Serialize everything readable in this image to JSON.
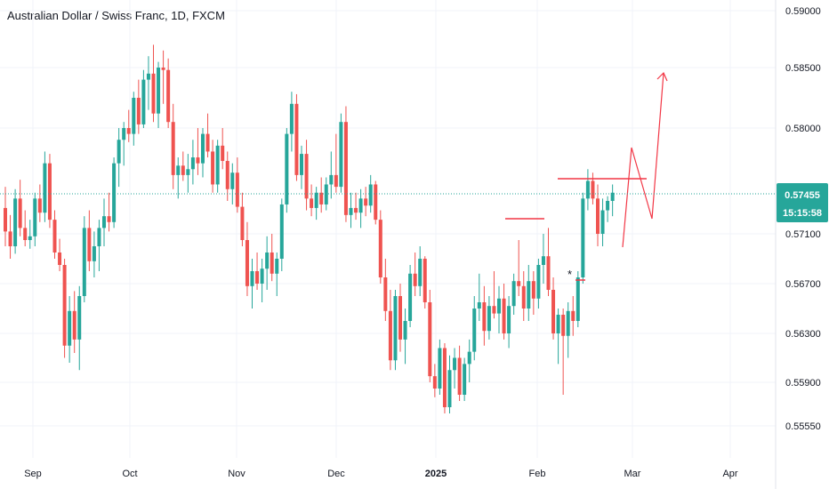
{
  "title": "Australian Dollar / Swiss Franc, 1D, FXCM",
  "chart_data": {
    "type": "candlestick",
    "y_ticks": [
      "0.59000",
      "0.58500",
      "0.58000",
      "0.57100",
      "0.56700",
      "0.56300",
      "0.55900",
      "0.55550"
    ],
    "x_ticks": [
      {
        "label": "Sep",
        "bold": false
      },
      {
        "label": "Oct",
        "bold": false
      },
      {
        "label": "Nov",
        "bold": false
      },
      {
        "label": "Dec",
        "bold": false
      },
      {
        "label": "2025",
        "bold": true
      },
      {
        "label": "Feb",
        "bold": false
      },
      {
        "label": "Mar",
        "bold": false
      },
      {
        "label": "Apr",
        "bold": false
      }
    ],
    "last_price": "0.57455",
    "countdown": "15:15:58",
    "colors": {
      "up": "#26a69a",
      "down": "#ef5350",
      "last_price": "#26a69a",
      "annotation": "#f23645"
    },
    "candles": [
      [
        0.5732,
        0.575,
        0.57,
        0.5712
      ],
      [
        0.5712,
        0.5726,
        0.569,
        0.57
      ],
      [
        0.57,
        0.5748,
        0.5694,
        0.574
      ],
      [
        0.574,
        0.5756,
        0.5708,
        0.5715
      ],
      [
        0.5715,
        0.573,
        0.57,
        0.5705
      ],
      [
        0.5705,
        0.5722,
        0.5698,
        0.5708
      ],
      [
        0.5708,
        0.5745,
        0.57,
        0.574
      ],
      [
        0.574,
        0.5752,
        0.572,
        0.5728
      ],
      [
        0.5728,
        0.578,
        0.572,
        0.577
      ],
      [
        0.577,
        0.5778,
        0.5715,
        0.5722
      ],
      [
        0.5722,
        0.573,
        0.569,
        0.5695
      ],
      [
        0.5695,
        0.5706,
        0.568,
        0.5685
      ],
      [
        0.5685,
        0.569,
        0.561,
        0.562
      ],
      [
        0.562,
        0.566,
        0.5606,
        0.5648
      ],
      [
        0.5648,
        0.5664,
        0.5614,
        0.5625
      ],
      [
        0.5625,
        0.5668,
        0.56,
        0.566
      ],
      [
        0.566,
        0.5725,
        0.5655,
        0.5715
      ],
      [
        0.5715,
        0.573,
        0.568,
        0.5688
      ],
      [
        0.5688,
        0.5712,
        0.5675,
        0.57
      ],
      [
        0.57,
        0.5722,
        0.568,
        0.5715
      ],
      [
        0.5715,
        0.574,
        0.57,
        0.5725
      ],
      [
        0.5725,
        0.5745,
        0.5712,
        0.572
      ],
      [
        0.572,
        0.5775,
        0.5715,
        0.577
      ],
      [
        0.577,
        0.58,
        0.575,
        0.579
      ],
      [
        0.579,
        0.5805,
        0.5768,
        0.58
      ],
      [
        0.58,
        0.5815,
        0.5788,
        0.5795
      ],
      [
        0.5795,
        0.583,
        0.5785,
        0.5825
      ],
      [
        0.5825,
        0.584,
        0.5795,
        0.5803
      ],
      [
        0.5803,
        0.5848,
        0.58,
        0.584
      ],
      [
        0.584,
        0.586,
        0.5815,
        0.5845
      ],
      [
        0.5845,
        0.587,
        0.5805,
        0.5812
      ],
      [
        0.5812,
        0.5855,
        0.58,
        0.585
      ],
      [
        0.585,
        0.5865,
        0.582,
        0.5848
      ],
      [
        0.5848,
        0.5858,
        0.58,
        0.5805
      ],
      [
        0.5805,
        0.582,
        0.5748,
        0.576
      ],
      [
        0.576,
        0.5775,
        0.574,
        0.5768
      ],
      [
        0.5768,
        0.578,
        0.5755,
        0.576
      ],
      [
        0.576,
        0.5778,
        0.5745,
        0.5765
      ],
      [
        0.5765,
        0.579,
        0.5752,
        0.5775
      ],
      [
        0.5775,
        0.58,
        0.576,
        0.577
      ],
      [
        0.577,
        0.58,
        0.5758,
        0.5795
      ],
      [
        0.5795,
        0.5812,
        0.5775,
        0.578
      ],
      [
        0.578,
        0.579,
        0.5745,
        0.5752
      ],
      [
        0.5752,
        0.579,
        0.5745,
        0.5785
      ],
      [
        0.5785,
        0.58,
        0.5765,
        0.5772
      ],
      [
        0.5772,
        0.578,
        0.5738,
        0.5748
      ],
      [
        0.5748,
        0.577,
        0.5735,
        0.5762
      ],
      [
        0.5762,
        0.5775,
        0.5728,
        0.5733
      ],
      [
        0.5733,
        0.5745,
        0.57,
        0.5705
      ],
      [
        0.5705,
        0.572,
        0.566,
        0.5668
      ],
      [
        0.5668,
        0.569,
        0.565,
        0.568
      ],
      [
        0.568,
        0.5695,
        0.5665,
        0.567
      ],
      [
        0.567,
        0.569,
        0.5655,
        0.5682
      ],
      [
        0.5682,
        0.5708,
        0.5665,
        0.5695
      ],
      [
        0.5695,
        0.571,
        0.5672,
        0.5678
      ],
      [
        0.5678,
        0.5695,
        0.566,
        0.569
      ],
      [
        0.569,
        0.574,
        0.568,
        0.5735
      ],
      [
        0.5735,
        0.58,
        0.5728,
        0.5795
      ],
      [
        0.5795,
        0.583,
        0.578,
        0.582
      ],
      [
        0.582,
        0.5828,
        0.5755,
        0.576
      ],
      [
        0.576,
        0.5785,
        0.5748,
        0.5778
      ],
      [
        0.5778,
        0.579,
        0.573,
        0.574
      ],
      [
        0.574,
        0.5752,
        0.5725,
        0.5732
      ],
      [
        0.5732,
        0.575,
        0.5722,
        0.5745
      ],
      [
        0.5745,
        0.5758,
        0.5728,
        0.5735
      ],
      [
        0.5735,
        0.5758,
        0.573,
        0.5752
      ],
      [
        0.5752,
        0.578,
        0.574,
        0.576
      ],
      [
        0.576,
        0.5795,
        0.5745,
        0.575
      ],
      [
        0.575,
        0.5812,
        0.5745,
        0.5805
      ],
      [
        0.5805,
        0.5818,
        0.572,
        0.5726
      ],
      [
        0.5726,
        0.5745,
        0.5715,
        0.5732
      ],
      [
        0.5732,
        0.5745,
        0.5722,
        0.5728
      ],
      [
        0.5728,
        0.5748,
        0.5715,
        0.574
      ],
      [
        0.574,
        0.575,
        0.5725,
        0.5734
      ],
      [
        0.5734,
        0.576,
        0.5728,
        0.5752
      ],
      [
        0.5752,
        0.5755,
        0.5718,
        0.5722
      ],
      [
        0.5722,
        0.573,
        0.567,
        0.5675
      ],
      [
        0.5675,
        0.569,
        0.564,
        0.5648
      ],
      [
        0.5648,
        0.5665,
        0.56,
        0.5608
      ],
      [
        0.5608,
        0.5665,
        0.56,
        0.566
      ],
      [
        0.566,
        0.567,
        0.5615,
        0.5625
      ],
      [
        0.5625,
        0.565,
        0.5605,
        0.564
      ],
      [
        0.564,
        0.5685,
        0.5635,
        0.5678
      ],
      [
        0.5678,
        0.5695,
        0.566,
        0.5668
      ],
      [
        0.5668,
        0.57,
        0.566,
        0.569
      ],
      [
        0.569,
        0.5692,
        0.565,
        0.5655
      ],
      [
        0.5655,
        0.5665,
        0.559,
        0.5595
      ],
      [
        0.5595,
        0.5605,
        0.5578,
        0.5585
      ],
      [
        0.5585,
        0.5625,
        0.558,
        0.5618
      ],
      [
        0.5618,
        0.5622,
        0.5565,
        0.557
      ],
      [
        0.557,
        0.5612,
        0.5565,
        0.56
      ],
      [
        0.56,
        0.5618,
        0.5585,
        0.561
      ],
      [
        0.561,
        0.562,
        0.5575,
        0.558
      ],
      [
        0.558,
        0.561,
        0.5575,
        0.5605
      ],
      [
        0.5605,
        0.5625,
        0.559,
        0.5615
      ],
      [
        0.5615,
        0.566,
        0.5608,
        0.565
      ],
      [
        0.565,
        0.5678,
        0.564,
        0.5655
      ],
      [
        0.5655,
        0.5668,
        0.562,
        0.5632
      ],
      [
        0.5632,
        0.566,
        0.5625,
        0.5652
      ],
      [
        0.5652,
        0.568,
        0.5642,
        0.5646
      ],
      [
        0.5646,
        0.5668,
        0.563,
        0.5658
      ],
      [
        0.5658,
        0.567,
        0.5625,
        0.563
      ],
      [
        0.563,
        0.566,
        0.5618,
        0.5652
      ],
      [
        0.5652,
        0.5678,
        0.5645,
        0.5672
      ],
      [
        0.5672,
        0.5705,
        0.566,
        0.5668
      ],
      [
        0.5668,
        0.568,
        0.564,
        0.565
      ],
      [
        0.565,
        0.5685,
        0.564,
        0.5672
      ],
      [
        0.5672,
        0.568,
        0.5645,
        0.5658
      ],
      [
        0.5658,
        0.569,
        0.565,
        0.5685
      ],
      [
        0.5685,
        0.571,
        0.567,
        0.5692
      ],
      [
        0.5692,
        0.5715,
        0.566,
        0.5665
      ],
      [
        0.5665,
        0.5675,
        0.5625,
        0.563
      ],
      [
        0.563,
        0.565,
        0.5605,
        0.5645
      ],
      [
        0.5645,
        0.565,
        0.558,
        0.5628
      ],
      [
        0.5628,
        0.5655,
        0.561,
        0.5648
      ],
      [
        0.5648,
        0.566,
        0.5628,
        0.564
      ],
      [
        0.564,
        0.568,
        0.5635,
        0.5675
      ],
      [
        0.5675,
        0.5745,
        0.567,
        0.574
      ],
      [
        0.574,
        0.5765,
        0.573,
        0.5755
      ],
      [
        0.5755,
        0.5762,
        0.5735,
        0.574
      ],
      [
        0.574,
        0.5752,
        0.57,
        0.571
      ],
      [
        0.571,
        0.574,
        0.57,
        0.573
      ],
      [
        0.573,
        0.5742,
        0.572,
        0.5738
      ],
      [
        0.5738,
        0.5752,
        0.5725,
        0.5745
      ]
    ]
  }
}
